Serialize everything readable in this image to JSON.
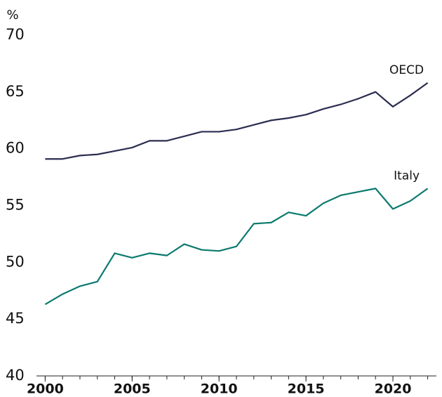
{
  "chart_data": {
    "type": "line",
    "y_unit": "%",
    "x": [
      2000,
      2001,
      2002,
      2003,
      2004,
      2005,
      2006,
      2007,
      2008,
      2009,
      2010,
      2011,
      2012,
      2013,
      2014,
      2015,
      2016,
      2017,
      2018,
      2019,
      2020,
      2021,
      2022
    ],
    "series": [
      {
        "name": "OECD",
        "color": "#2b2d4f",
        "values": [
          59.1,
          59.1,
          59.4,
          59.5,
          59.8,
          60.1,
          60.7,
          60.7,
          61.1,
          61.5,
          61.5,
          61.7,
          62.1,
          62.5,
          62.7,
          63.0,
          63.5,
          63.9,
          64.4,
          65.0,
          63.7,
          64.7,
          65.8
        ]
      },
      {
        "name": "Italy",
        "color": "#0b7a6e",
        "values": [
          46.3,
          47.2,
          47.9,
          48.3,
          50.8,
          50.4,
          50.8,
          50.6,
          51.6,
          51.1,
          51.0,
          51.4,
          53.4,
          53.5,
          54.4,
          54.1,
          55.2,
          55.9,
          56.2,
          56.5,
          54.7,
          55.4,
          56.5
        ]
      }
    ],
    "xlim": [
      1999.5,
      2022.5
    ],
    "xticks": [
      2000,
      2005,
      2010,
      2015,
      2020
    ],
    "ylim": [
      40,
      70
    ],
    "yticks": [
      40,
      45,
      50,
      55,
      60,
      65,
      70
    ]
  }
}
